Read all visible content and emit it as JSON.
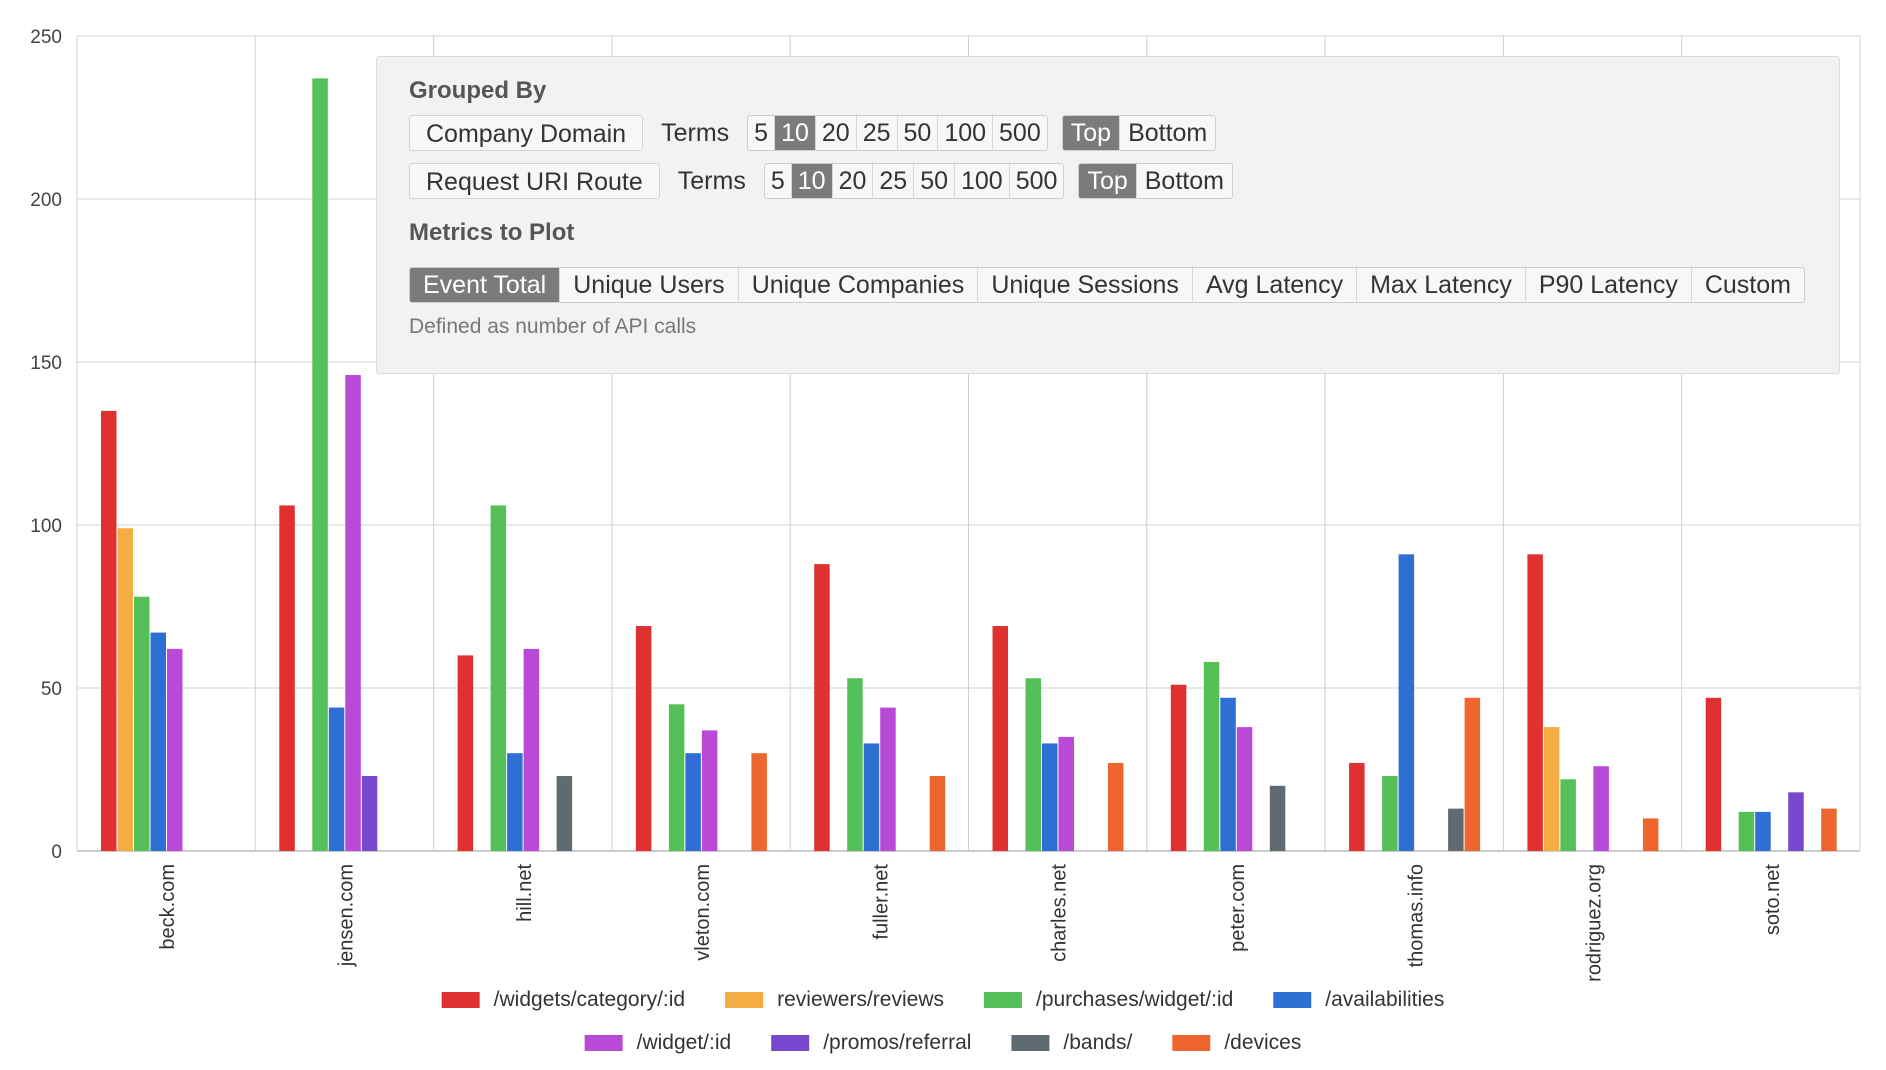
{
  "chart_data": {
    "type": "bar",
    "categories": [
      "beck.com",
      "jensen.com",
      "hill.net",
      "vleton.com",
      "fuller.net",
      "charles.net",
      "peter.com",
      "thomas.info",
      "rodriguez.org",
      "soto.net"
    ],
    "series": [
      {
        "name": "/widgets/category/:id",
        "color": "#e03131",
        "values": [
          135,
          106,
          60,
          69,
          88,
          69,
          51,
          27,
          91,
          47
        ]
      },
      {
        "name": "reviewers/reviews",
        "color": "#f4ad42",
        "values": [
          99,
          0,
          0,
          0,
          0,
          0,
          0,
          0,
          38,
          0
        ]
      },
      {
        "name": "/purchases/widget/:id",
        "color": "#55c058",
        "values": [
          78,
          237,
          106,
          45,
          53,
          53,
          58,
          23,
          22,
          12
        ]
      },
      {
        "name": "/availabilities",
        "color": "#2e6fd4",
        "values": [
          67,
          44,
          30,
          30,
          33,
          33,
          47,
          91,
          0,
          12
        ]
      },
      {
        "name": "/widget/:id",
        "color": "#b94ad8",
        "values": [
          62,
          146,
          62,
          37,
          44,
          35,
          38,
          0,
          26,
          0
        ]
      },
      {
        "name": "/promos/referral",
        "color": "#7847d0",
        "values": [
          0,
          23,
          0,
          0,
          0,
          0,
          0,
          0,
          0,
          18
        ]
      },
      {
        "name": "/bands/",
        "color": "#5f6b70",
        "values": [
          0,
          0,
          23,
          0,
          0,
          0,
          20,
          13,
          0,
          0
        ]
      },
      {
        "name": "/devices",
        "color": "#ee6530",
        "values": [
          0,
          0,
          0,
          30,
          23,
          27,
          0,
          47,
          10,
          13
        ]
      }
    ],
    "ylim": [
      0,
      250
    ],
    "yticks": [
      0,
      50,
      100,
      150,
      200,
      250
    ],
    "title": "",
    "xlabel": "",
    "ylabel": "",
    "legend_position": "bottom",
    "grid": true
  },
  "controls": {
    "grouped_by_title": "Grouped By",
    "group1": {
      "field": "Company Domain",
      "terms_label": "Terms",
      "term_options": [
        "5",
        "10",
        "20",
        "25",
        "50",
        "100",
        "500"
      ],
      "term_selected": "10",
      "order_options": [
        "Top",
        "Bottom"
      ],
      "order_selected": "Top"
    },
    "group2": {
      "field": "Request URI Route",
      "terms_label": "Terms",
      "term_options": [
        "5",
        "10",
        "20",
        "25",
        "50",
        "100",
        "500"
      ],
      "term_selected": "10",
      "order_options": [
        "Top",
        "Bottom"
      ],
      "order_selected": "Top"
    },
    "metrics_title": "Metrics to Plot",
    "metric_options": [
      "Event Total",
      "Unique Users",
      "Unique Companies",
      "Unique Sessions",
      "Avg Latency",
      "Max Latency",
      "P90 Latency",
      "Custom"
    ],
    "metric_selected": "Event Total",
    "metric_hint": "Defined as number of API calls"
  }
}
